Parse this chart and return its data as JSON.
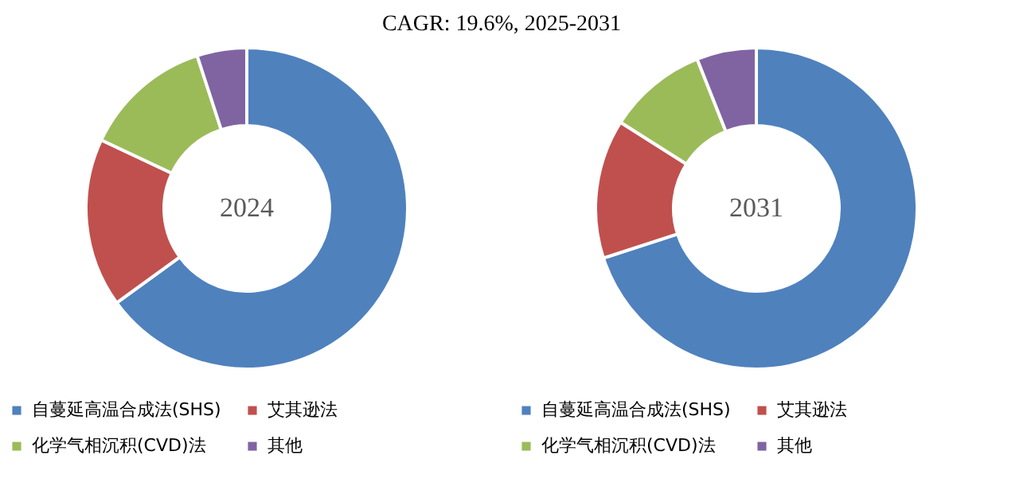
{
  "chart_data": [
    {
      "type": "donut",
      "title": "2024",
      "annotations": [
        "CAGR:   19.6%, 2025-2031"
      ],
      "categories": [
        "自蔓延高温合成法(SHS)",
        "艾其逊法",
        "化学气相沉积(CVD)法",
        "其他"
      ],
      "values": [
        65,
        17,
        13,
        5
      ],
      "colors": [
        "#4f81bd",
        "#c0504d",
        "#9bbb59",
        "#8064a2"
      ],
      "legend": "bottom"
    },
    {
      "type": "donut",
      "title": "2031",
      "categories": [
        "自蔓延高温合成法(SHS)",
        "艾其逊法",
        "化学气相沉积(CVD)法",
        "其他"
      ],
      "values": [
        70,
        14,
        10,
        6
      ],
      "colors": [
        "#4f81bd",
        "#c0504d",
        "#9bbb59",
        "#8064a2"
      ],
      "legend": "bottom"
    }
  ]
}
